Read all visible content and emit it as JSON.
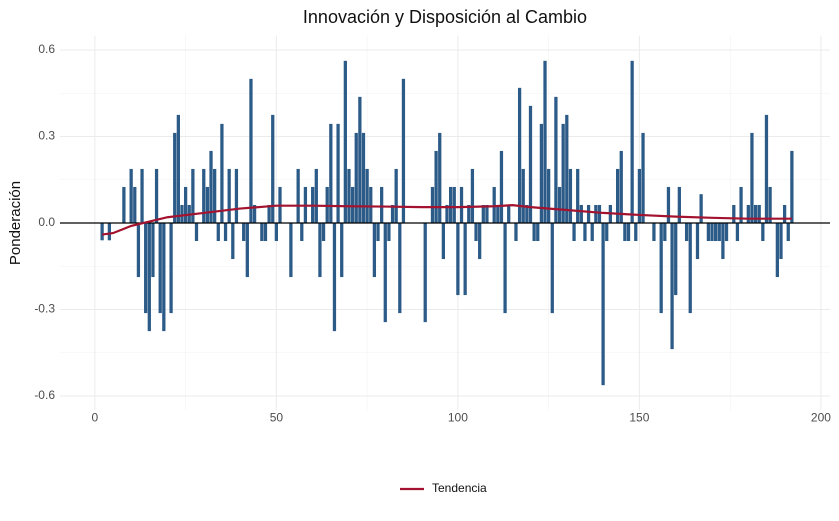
{
  "chart_data": {
    "type": "bar",
    "title": "Innovación y Disposición al Cambio",
    "y_label": "Ponderación",
    "x": [
      1,
      2,
      3,
      4,
      5,
      6,
      7,
      8,
      9,
      10,
      11,
      12,
      13,
      14,
      15,
      16,
      17,
      18,
      19,
      20,
      21,
      22,
      23,
      24,
      25,
      26,
      27,
      28,
      29,
      30,
      31,
      32,
      33,
      34,
      35,
      36,
      37,
      38,
      39,
      40,
      41,
      42,
      43,
      44,
      45,
      46,
      47,
      48,
      49,
      50,
      51,
      52,
      53,
      54,
      55,
      56,
      57,
      58,
      59,
      60,
      61,
      62,
      63,
      64,
      65,
      66,
      67,
      68,
      69,
      70,
      71,
      72,
      73,
      74,
      75,
      76,
      77,
      78,
      79,
      80,
      81,
      82,
      83,
      84,
      85,
      86,
      87,
      88,
      89,
      90,
      91,
      92,
      93,
      94,
      95,
      96,
      97,
      98,
      99,
      100,
      101,
      102,
      103,
      104,
      105,
      106,
      107,
      108,
      109,
      110,
      111,
      112,
      113,
      114,
      115,
      116,
      117,
      118,
      119,
      120,
      121,
      122,
      123,
      124,
      125,
      126,
      127,
      128,
      129,
      130,
      131,
      132,
      133,
      134,
      135,
      136,
      137,
      138,
      139,
      140,
      141,
      142,
      143,
      144,
      145,
      146,
      147,
      148,
      149,
      150,
      151,
      152,
      153,
      154,
      155,
      156,
      157,
      158,
      159,
      160,
      161,
      162,
      163,
      164,
      165,
      166,
      167,
      168,
      169,
      170,
      171,
      172,
      173,
      174,
      175,
      176,
      177,
      178,
      179,
      180,
      181,
      182,
      183,
      184,
      185,
      186,
      187,
      188,
      189,
      190,
      191,
      192
    ],
    "values": [
      0,
      -0.06,
      0,
      -0.06,
      0,
      0,
      0,
      0.125,
      0,
      0.1875,
      0.125,
      -0.1875,
      0.1875,
      -0.3125,
      -0.375,
      -0.1875,
      0.1875,
      -0.3125,
      -0.375,
      0,
      -0.3125,
      0.3125,
      0.375,
      0.0625,
      0.125,
      0.0625,
      0.1875,
      -0.0625,
      0,
      0.1875,
      0.125,
      0.25,
      0.1875,
      -0.0625,
      0.3438,
      -0.0625,
      0.1875,
      -0.125,
      0.1875,
      0,
      -0.0625,
      -0.1875,
      0.5,
      0.0625,
      0,
      -0.0625,
      -0.0625,
      0.0625,
      0.375,
      -0.0625,
      0.125,
      0,
      0,
      -0.1875,
      0,
      0.1875,
      -0.0625,
      0.125,
      0,
      0.125,
      0.1875,
      -0.1875,
      -0.0625,
      0.125,
      0.3438,
      -0.375,
      0.3438,
      -0.1875,
      0.5625,
      0.1875,
      0.125,
      0.3125,
      0.4375,
      0.3125,
      0.1875,
      0.125,
      -0.1875,
      -0.0625,
      0.125,
      -0.3438,
      -0.0625,
      0.0625,
      0.1875,
      -0.3125,
      0.5,
      0,
      0,
      0,
      0,
      0,
      -0.3438,
      0,
      0.125,
      0.25,
      0.3125,
      -0.125,
      0.0625,
      0.125,
      0.125,
      -0.25,
      0.125,
      -0.25,
      0.0625,
      0.1875,
      -0.0625,
      -0.125,
      0.0625,
      0.0625,
      0,
      0.125,
      0.0625,
      0.25,
      -0.3125,
      0.0625,
      0,
      -0.0625,
      0.4688,
      0.1875,
      0.0625,
      0.4063,
      -0.0625,
      -0.0625,
      0.3438,
      0.5625,
      0.1875,
      -0.3125,
      0.4375,
      0.125,
      0.3438,
      0.375,
      0.1875,
      -0.0625,
      0.1875,
      0.0625,
      -0.0625,
      0.0625,
      -0.0625,
      0.0625,
      0.0625,
      -0.5625,
      -0.0625,
      0.0625,
      0,
      0.1875,
      0.25,
      -0.0625,
      -0.0625,
      0.5625,
      -0.0625,
      0.1875,
      0.3125,
      0,
      0,
      -0.0625,
      0,
      -0.3125,
      -0.0625,
      0.125,
      -0.4375,
      -0.25,
      0.125,
      0,
      -0.0625,
      -0.3125,
      0,
      -0.125,
      0.1,
      0,
      -0.0625,
      -0.0625,
      -0.0625,
      -0.0625,
      -0.125,
      -0.0625,
      0,
      0.0625,
      -0.0625,
      0.125,
      0,
      0.0625,
      0.3125,
      0.0625,
      0.0625,
      -0.0625,
      0.375,
      0.125,
      0,
      -0.1875,
      -0.125,
      0.0625,
      -0.0625,
      0.25
    ],
    "color": "#2c5b88",
    "trend": {
      "name": "Tendencia",
      "color": "#a3132f",
      "x": [
        2,
        5,
        10,
        15,
        20,
        30,
        40,
        50,
        60,
        70,
        80,
        90,
        100,
        110,
        115,
        120,
        130,
        140,
        150,
        160,
        170,
        180,
        192
      ],
      "values": [
        -0.04,
        -0.035,
        -0.01,
        0.005,
        0.02,
        0.035,
        0.05,
        0.06,
        0.06,
        0.058,
        0.057,
        0.055,
        0.055,
        0.058,
        0.062,
        0.055,
        0.045,
        0.035,
        0.028,
        0.022,
        0.018,
        0.015,
        0.015
      ]
    },
    "xlim": [
      -9.6,
      202.5
    ],
    "ylim": [
      -0.65,
      0.65
    ],
    "xticks": [
      0,
      50,
      100,
      150,
      200
    ],
    "yticks": [
      -0.6,
      -0.3,
      {
        "value": 0,
        "label": "0.0"
      },
      0.3,
      0.6
    ],
    "x_minor": [
      25,
      75,
      125,
      175
    ],
    "y_minor": [
      -0.45,
      -0.15,
      0.15,
      0.45
    ],
    "grid": true,
    "legend": "bottom"
  }
}
